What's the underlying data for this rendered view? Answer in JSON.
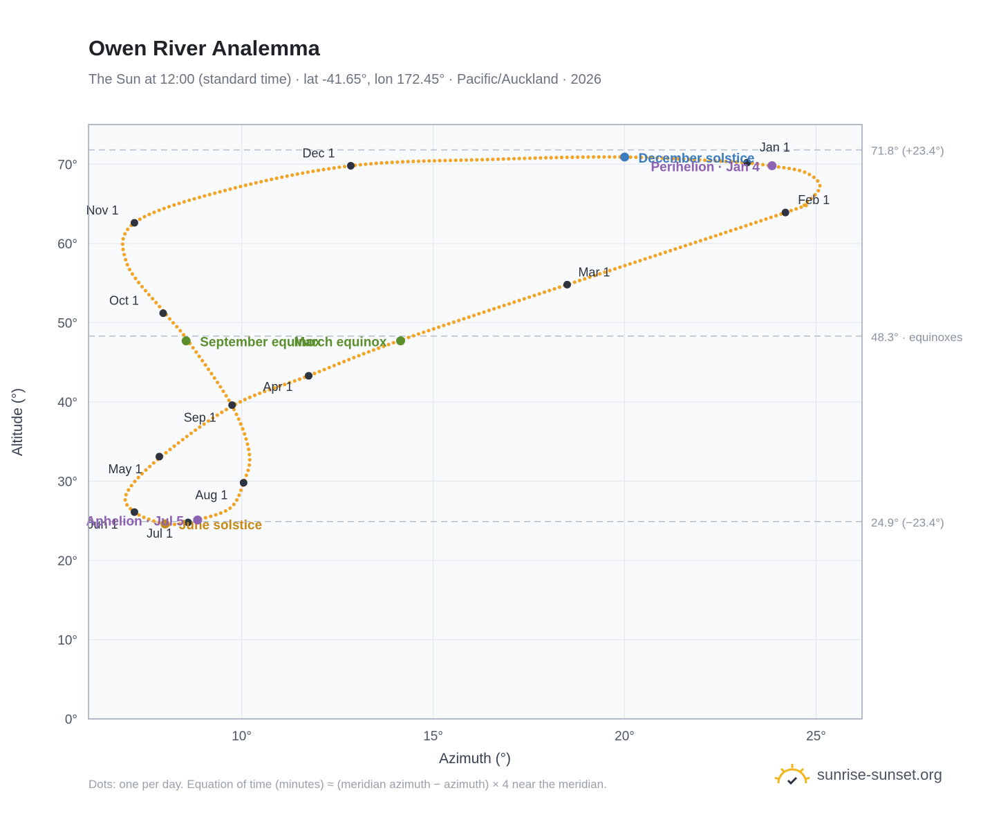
{
  "header": {
    "title": "Owen River Analemma",
    "subtitle": "The Sun at 12:00 (standard time) · lat -41.65°, lon 172.45° · Pacific/Auckland · 2026"
  },
  "footer": {
    "note": "Dots: one per day. Equation of time (minutes) ≈ (meridian azimuth − azimuth) × 4 near the meridian.",
    "brand": "sunrise-sunset.org",
    "brand_icon": "sun-logo-icon"
  },
  "colors": {
    "curve": "#f2a427",
    "month_dot": "#2d3440",
    "equinox": "#5b8f2e",
    "december_solstice": "#3b7bbf",
    "june_solstice": "#c58a17",
    "apsis": "#8e62b3",
    "ref_line": "#b3bfca",
    "grid": "#e3e8ee",
    "plot_bg": "#f8fafc",
    "frame": "#9aa5b4"
  },
  "chart_data": {
    "type": "scatter",
    "xlabel": "Azimuth (°)",
    "ylabel": "Altitude (°)",
    "xlim": [
      6,
      26.2
    ],
    "ylim": [
      0,
      75
    ],
    "x_ticks": [
      10,
      15,
      20,
      25
    ],
    "x_tick_labels": [
      "10°",
      "15°",
      "20°",
      "25°"
    ],
    "y_ticks": [
      0,
      10,
      20,
      30,
      40,
      50,
      60,
      70
    ],
    "y_tick_labels": [
      "0°",
      "10°",
      "20°",
      "30°",
      "40°",
      "50°",
      "60°",
      "70°"
    ],
    "grid": true,
    "reference_lines": [
      {
        "y": 71.8,
        "label": "71.8° (+23.4°)"
      },
      {
        "y": 48.3,
        "label": "48.3° · equinoxes"
      },
      {
        "y": 24.9,
        "label": "24.9° (−23.4°)"
      }
    ],
    "daily_path": {
      "description_points": "one dot per day; path passes through these anchors in date order",
      "anchors": [
        {
          "x": 23.2,
          "y": 70.2
        },
        {
          "x": 23.8,
          "y": 69.8
        },
        {
          "x": 24.7,
          "y": 69.0
        },
        {
          "x": 25.1,
          "y": 67.2
        },
        {
          "x": 24.7,
          "y": 65.0
        },
        {
          "x": 24.2,
          "y": 63.9
        },
        {
          "x": 18.5,
          "y": 54.8
        },
        {
          "x": 14.1,
          "y": 47.7
        },
        {
          "x": 11.75,
          "y": 43.3
        },
        {
          "x": 9.8,
          "y": 39.6
        },
        {
          "x": 7.9,
          "y": 33.1
        },
        {
          "x": 7.0,
          "y": 28.5
        },
        {
          "x": 7.2,
          "y": 26.1
        },
        {
          "x": 8.0,
          "y": 24.6
        },
        {
          "x": 8.6,
          "y": 24.8
        },
        {
          "x": 8.85,
          "y": 25.1
        },
        {
          "x": 9.7,
          "y": 26.6
        },
        {
          "x": 10.05,
          "y": 29.8
        },
        {
          "x": 10.2,
          "y": 33.5
        },
        {
          "x": 9.75,
          "y": 39.5
        },
        {
          "x": 8.6,
          "y": 47.7
        },
        {
          "x": 8.0,
          "y": 51.2
        },
        {
          "x": 7.0,
          "y": 57.5
        },
        {
          "x": 7.2,
          "y": 62.6
        },
        {
          "x": 9.5,
          "y": 66.6
        },
        {
          "x": 12.85,
          "y": 69.8
        },
        {
          "x": 16.5,
          "y": 70.6
        },
        {
          "x": 20.0,
          "y": 70.9
        },
        {
          "x": 23.2,
          "y": 70.2
        }
      ]
    },
    "month_markers": [
      {
        "label": "Jan 1",
        "x": 23.2,
        "y": 70.2
      },
      {
        "label": "Feb 1",
        "x": 24.2,
        "y": 63.9
      },
      {
        "label": "Mar 1",
        "x": 18.5,
        "y": 54.8
      },
      {
        "label": "Apr 1",
        "x": 11.75,
        "y": 43.3
      },
      {
        "label": "May 1",
        "x": 7.85,
        "y": 33.1
      },
      {
        "label": "Jun 1",
        "x": 7.2,
        "y": 26.1
      },
      {
        "label": "Jul 1",
        "x": 8.6,
        "y": 24.8
      },
      {
        "label": "Aug 1",
        "x": 10.05,
        "y": 29.8
      },
      {
        "label": "Sep 1",
        "x": 9.75,
        "y": 39.6
      },
      {
        "label": "Oct 1",
        "x": 7.95,
        "y": 51.2
      },
      {
        "label": "Nov 1",
        "x": 7.2,
        "y": 62.6
      },
      {
        "label": "Dec 1",
        "x": 12.85,
        "y": 69.8
      }
    ],
    "events": [
      {
        "label": "December solstice",
        "x": 20.0,
        "y": 70.9,
        "kind": "december_solstice"
      },
      {
        "label": "Perihelion · Jan 4",
        "x": 23.85,
        "y": 69.8,
        "kind": "apsis"
      },
      {
        "label": "March equinox",
        "x": 14.15,
        "y": 47.7,
        "kind": "equinox"
      },
      {
        "label": "September equinox",
        "x": 8.55,
        "y": 47.7,
        "kind": "equinox"
      },
      {
        "label": "June solstice",
        "x": 8.0,
        "y": 24.6,
        "kind": "june_solstice"
      },
      {
        "label": "Aphelion · Jul 5",
        "x": 8.85,
        "y": 25.1,
        "kind": "apsis"
      }
    ]
  }
}
